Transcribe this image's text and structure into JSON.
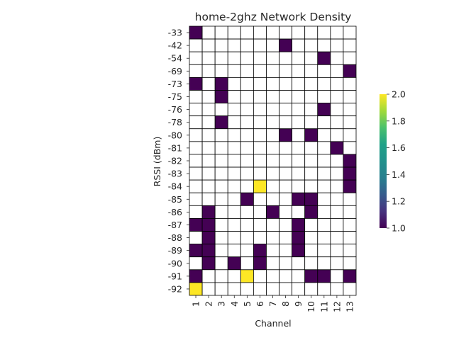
{
  "chart_data": {
    "type": "heatmap",
    "title": "home-2ghz Network Density",
    "xlabel": "Channel",
    "ylabel": "RSSI (dBm)",
    "x_categories": [
      "1",
      "2",
      "3",
      "4",
      "5",
      "6",
      "7",
      "8",
      "9",
      "10",
      "11",
      "12",
      "13"
    ],
    "y_categories": [
      "-33",
      "-42",
      "-54",
      "-69",
      "-73",
      "-75",
      "-76",
      "-78",
      "-80",
      "-81",
      "-82",
      "-83",
      "-84",
      "-85",
      "-86",
      "-87",
      "-88",
      "-89",
      "-90",
      "-91",
      "-92"
    ],
    "values": [
      [
        1,
        0,
        0,
        0,
        0,
        0,
        0,
        0,
        0,
        0,
        0,
        0,
        0
      ],
      [
        0,
        0,
        0,
        0,
        0,
        0,
        0,
        1,
        0,
        0,
        0,
        0,
        0
      ],
      [
        0,
        0,
        0,
        0,
        0,
        0,
        0,
        0,
        0,
        0,
        1,
        0,
        0
      ],
      [
        0,
        0,
        0,
        0,
        0,
        0,
        0,
        0,
        0,
        0,
        0,
        0,
        1
      ],
      [
        1,
        0,
        1,
        0,
        0,
        0,
        0,
        0,
        0,
        0,
        0,
        0,
        0
      ],
      [
        0,
        0,
        1,
        0,
        0,
        0,
        0,
        0,
        0,
        0,
        0,
        0,
        0
      ],
      [
        0,
        0,
        0,
        0,
        0,
        0,
        0,
        0,
        0,
        0,
        1,
        0,
        0
      ],
      [
        0,
        0,
        1,
        0,
        0,
        0,
        0,
        0,
        0,
        0,
        0,
        0,
        0
      ],
      [
        0,
        0,
        0,
        0,
        0,
        0,
        0,
        1,
        0,
        1,
        0,
        0,
        0
      ],
      [
        0,
        0,
        0,
        0,
        0,
        0,
        0,
        0,
        0,
        0,
        0,
        1,
        0
      ],
      [
        0,
        0,
        0,
        0,
        0,
        0,
        0,
        0,
        0,
        0,
        0,
        0,
        1
      ],
      [
        0,
        0,
        0,
        0,
        0,
        0,
        0,
        0,
        0,
        0,
        0,
        0,
        1
      ],
      [
        0,
        0,
        0,
        0,
        0,
        2,
        0,
        0,
        0,
        0,
        0,
        0,
        1
      ],
      [
        0,
        0,
        0,
        0,
        1,
        0,
        0,
        0,
        1,
        1,
        0,
        0,
        0
      ],
      [
        0,
        1,
        0,
        0,
        0,
        0,
        1,
        0,
        0,
        1,
        0,
        0,
        0
      ],
      [
        1,
        1,
        0,
        0,
        0,
        0,
        0,
        0,
        1,
        0,
        0,
        0,
        0
      ],
      [
        0,
        1,
        0,
        0,
        0,
        0,
        0,
        0,
        1,
        0,
        0,
        0,
        0
      ],
      [
        1,
        1,
        0,
        0,
        0,
        1,
        0,
        0,
        1,
        0,
        0,
        0,
        0
      ],
      [
        0,
        1,
        0,
        1,
        0,
        1,
        0,
        0,
        0,
        0,
        0,
        0,
        0
      ],
      [
        1,
        0,
        0,
        0,
        2,
        0,
        0,
        0,
        0,
        1,
        1,
        0,
        1
      ],
      [
        2,
        0,
        0,
        0,
        0,
        0,
        0,
        0,
        0,
        0,
        0,
        0,
        0
      ]
    ],
    "empty_value": 0,
    "colormap": "viridis",
    "colorbar": {
      "min": 1.0,
      "max": 2.0,
      "ticks": [
        "1.0",
        "1.2",
        "1.4",
        "1.6",
        "1.8",
        "2.0"
      ]
    },
    "colors": {
      "low": "#440154",
      "high": "#fde725",
      "empty": "#ffffff",
      "cell_border": "#000000"
    },
    "grid": true
  }
}
